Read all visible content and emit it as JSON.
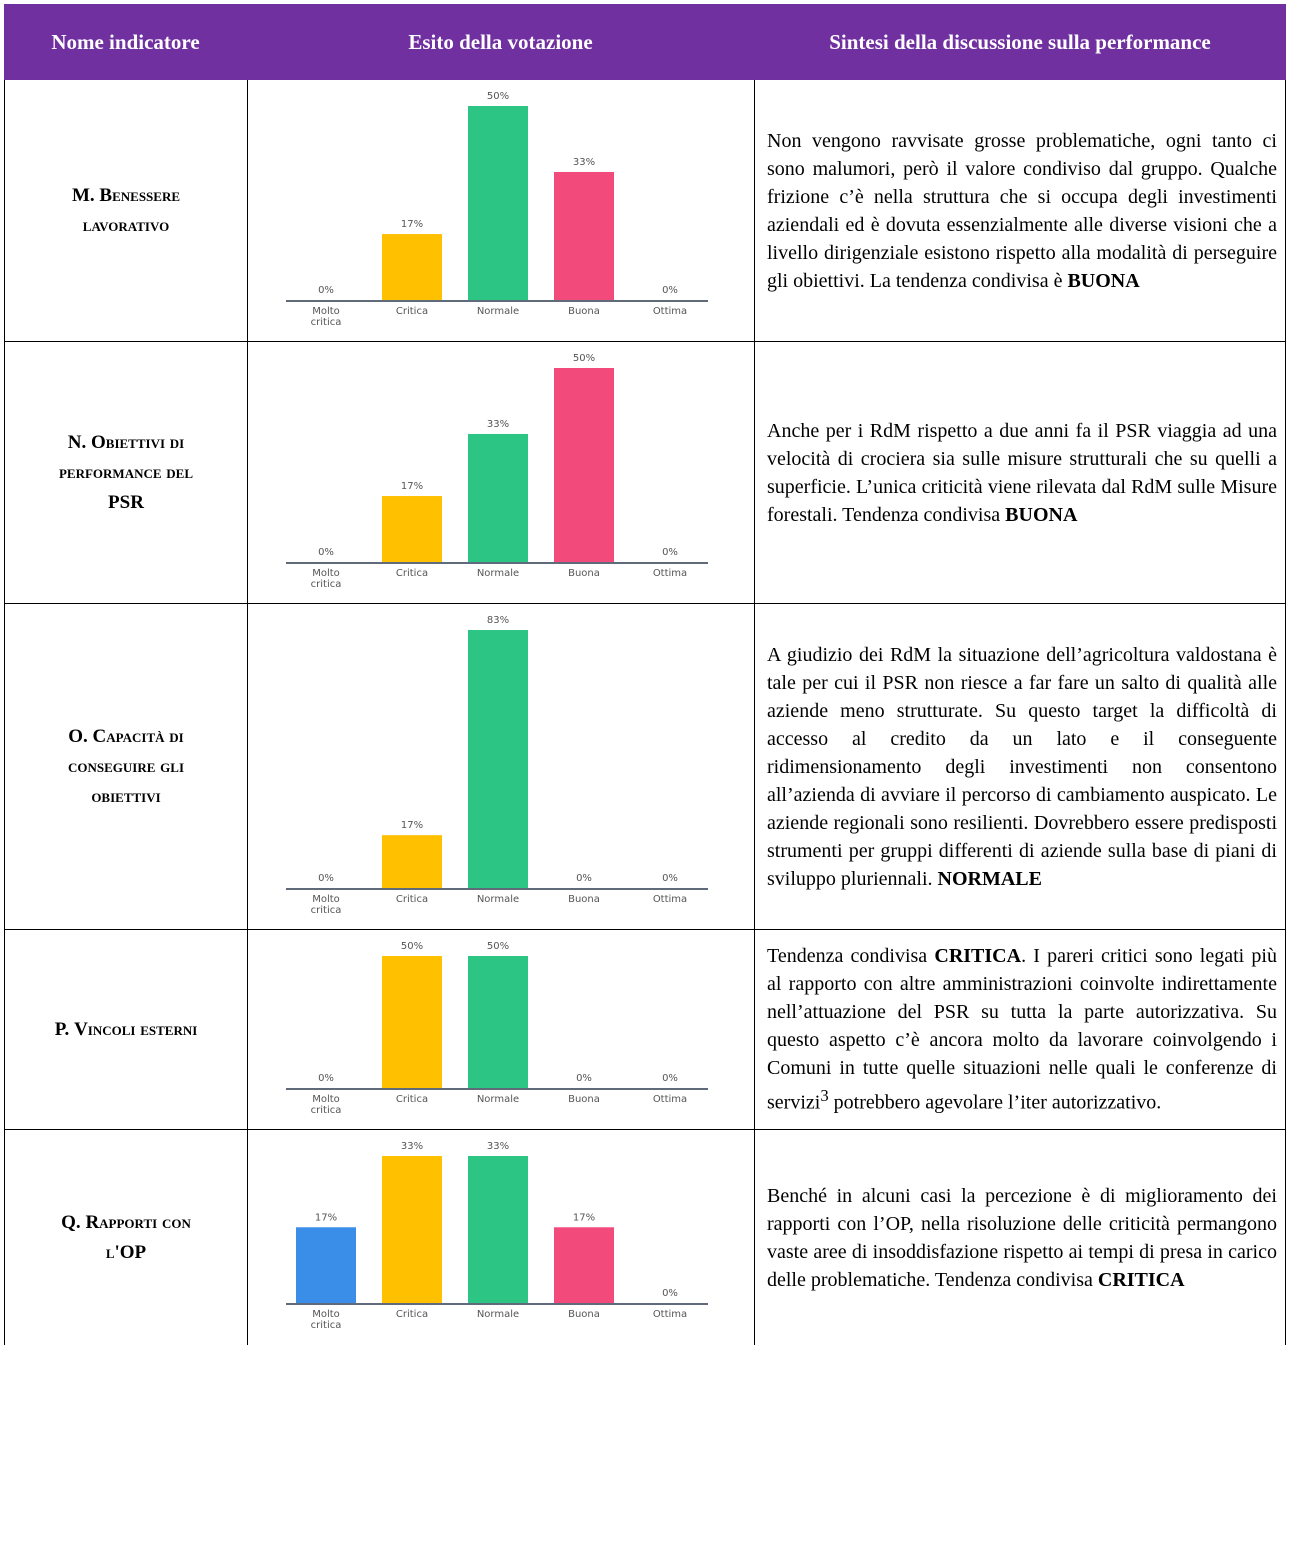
{
  "header": {
    "col1": "Nome indicatore",
    "col2": "Esito della votazione",
    "col3": "Sintesi della discussione sulla performance"
  },
  "colors": {
    "header_bg": "#7030a0",
    "Molto critica": "#3b8ee8",
    "Critica": "#ffc000",
    "Normale": "#2dc583",
    "Buona": "#f24b7b",
    "Ottima": "#9e9e9e"
  },
  "rows": [
    {
      "indicator_prefix": "M.",
      "indicator_words": [
        "Benessere",
        "lavorativo"
      ],
      "summary_text": "Non vengono ravvisate grosse problematiche, ogni tanto ci sono malumori, però il valore condiviso dal gruppo. Qualche frizione c’è nella struttura che si occupa degli investimenti aziendali ed è dovuta essenzialmente alle diverse visioni che a livello dirigenziale esistono rispetto alla modalità di perseguire gli obiettivi. La tendenza condivisa è ",
      "summary_bold": "BUONA"
    },
    {
      "indicator_prefix": "N.",
      "indicator_words": [
        "Obiettivi di",
        "performance del",
        "PSR"
      ],
      "summary_text": "Anche per i RdM rispetto a due anni fa il PSR viaggia ad una velocità di crociera sia sulle misure strutturali che su quelli a superficie. L’unica criticità viene rilevata dal RdM sulle Misure forestali. Tendenza condivisa ",
      "summary_bold": "BUONA"
    },
    {
      "indicator_prefix": "O.",
      "indicator_words": [
        "Capacità di",
        "conseguire gli",
        "obiettivi"
      ],
      "summary_text": "A giudizio dei RdM la situazione dell’agricoltura valdostana è tale per cui il PSR non riesce a far fare un salto di qualità alle aziende meno strutturate. Su questo target la difficoltà di accesso al credito da un lato e il conseguente ridimensionamento degli investimenti non consentono all’azienda di avviare il percorso di cambiamento auspicato. Le aziende regionali sono resilienti. Dovrebbero essere predisposti strumenti per gruppi differenti di aziende sulla base di piani di sviluppo pluriennali. ",
      "summary_bold": "NORMALE"
    },
    {
      "indicator_prefix": "P.",
      "indicator_words": [
        "Vincoli esterni"
      ],
      "summary_lead": "Tendenza condivisa ",
      "summary_bold": "CRITICA",
      "summary_text": ". I pareri critici sono legati più al rapporto con altre amministrazioni coinvolte indirettamente nell’attuazione del PSR su tutta la parte autorizzativa. Su questo aspetto c’è ancora molto da lavorare coinvolgendo i Comuni in tutte quelle situazioni nelle quali le conferenze di servizi",
      "summary_sup": "3",
      "summary_tail": " potrebbero agevolare l’iter autorizzativo."
    },
    {
      "indicator_prefix": "Q.",
      "indicator_words": [
        "Rapporti con",
        "l'OP"
      ],
      "summary_text": "Benché in alcuni casi la percezione è di miglioramento dei rapporti con l’OP, nella risoluzione delle criticità permangono vaste aree di insoddisfazione rispetto ai tempi di presa in carico delle problematiche. Tendenza condivisa ",
      "summary_bold": "CRITICA"
    }
  ],
  "chart_data": [
    {
      "type": "bar",
      "categories": [
        "Molto critica",
        "Critica",
        "Normale",
        "Buona",
        "Ottima"
      ],
      "values": [
        0,
        17,
        50,
        33,
        0
      ],
      "labels": [
        "0%",
        "17%",
        "50%",
        "33%",
        "0%"
      ]
    },
    {
      "type": "bar",
      "categories": [
        "Molto critica",
        "Critica",
        "Normale",
        "Buona",
        "Ottima"
      ],
      "values": [
        0,
        17,
        33,
        50,
        0
      ],
      "labels": [
        "0%",
        "17%",
        "33%",
        "50%",
        "0%"
      ]
    },
    {
      "type": "bar",
      "categories": [
        "Molto critica",
        "Critica",
        "Normale",
        "Buona",
        "Ottima"
      ],
      "values": [
        0,
        17,
        83,
        0,
        0
      ],
      "labels": [
        "0%",
        "17%",
        "83%",
        "0%",
        "0%"
      ]
    },
    {
      "type": "bar",
      "categories": [
        "Molto critica",
        "Critica",
        "Normale",
        "Buona",
        "Ottima"
      ],
      "values": [
        0,
        50,
        50,
        0,
        0
      ],
      "labels": [
        "0%",
        "50%",
        "50%",
        "0%",
        "0%"
      ]
    },
    {
      "type": "bar",
      "categories": [
        "Molto critica",
        "Critica",
        "Normale",
        "Buona",
        "Ottima"
      ],
      "values": [
        17,
        33,
        33,
        17,
        0
      ],
      "labels": [
        "17%",
        "33%",
        "33%",
        "17%",
        "0%"
      ]
    }
  ]
}
